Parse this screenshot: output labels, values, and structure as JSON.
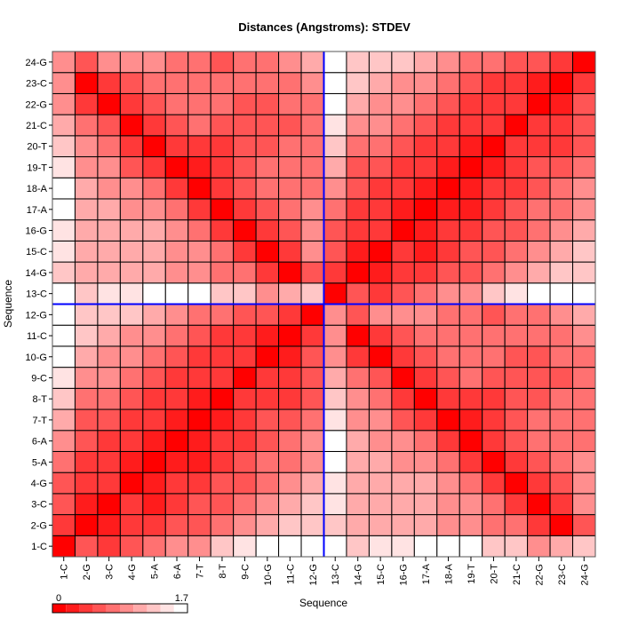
{
  "chart_data": {
    "type": "heatmap",
    "title": "Distances (Angstroms):  STDEV",
    "xlabel": "Sequence",
    "ylabel": "Sequence",
    "categories": [
      "1-C",
      "2-G",
      "3-C",
      "4-G",
      "5-A",
      "6-A",
      "7-T",
      "8-T",
      "9-C",
      "10-G",
      "11-C",
      "12-G",
      "13-C",
      "14-G",
      "15-C",
      "16-G",
      "17-A",
      "18-A",
      "19-T",
      "20-T",
      "21-C",
      "22-G",
      "23-C",
      "24-G"
    ],
    "legend": {
      "min_label": "0",
      "max_label": "1.7",
      "min": 0,
      "max": 1.7,
      "bins": 10
    },
    "colors": {
      "low": "#ff0000",
      "high": "#ffffff",
      "grid": "#000000",
      "highlight": "#0000ff"
    },
    "blockA": [
      [
        0.0,
        0.55,
        0.5,
        0.65,
        0.75,
        0.9,
        1.0,
        1.2,
        1.45,
        1.6,
        1.7,
        1.65
      ],
      [
        0.5,
        0.0,
        0.25,
        0.35,
        0.4,
        0.55,
        0.6,
        0.7,
        0.9,
        1.05,
        1.2,
        1.3
      ],
      [
        0.55,
        0.25,
        0.0,
        0.35,
        0.3,
        0.45,
        0.55,
        0.65,
        0.8,
        0.95,
        1.1,
        1.25
      ],
      [
        0.65,
        0.35,
        0.4,
        0.0,
        0.25,
        0.35,
        0.45,
        0.55,
        0.65,
        0.8,
        0.9,
        1.15
      ],
      [
        0.75,
        0.45,
        0.35,
        0.2,
        0.0,
        0.2,
        0.25,
        0.4,
        0.55,
        0.7,
        0.8,
        1.0
      ],
      [
        0.9,
        0.55,
        0.5,
        0.35,
        0.25,
        0.0,
        0.2,
        0.35,
        0.5,
        0.65,
        0.7,
        0.85
      ],
      [
        1.1,
        0.65,
        0.55,
        0.45,
        0.35,
        0.2,
        0.0,
        0.25,
        0.4,
        0.55,
        0.6,
        0.75
      ],
      [
        1.3,
        0.8,
        0.7,
        0.55,
        0.45,
        0.35,
        0.25,
        0.0,
        0.35,
        0.45,
        0.5,
        0.65
      ],
      [
        1.5,
        1.0,
        0.85,
        0.7,
        0.6,
        0.45,
        0.4,
        0.35,
        0.0,
        0.35,
        0.4,
        0.6
      ],
      [
        1.6,
        1.1,
        1.0,
        0.85,
        0.75,
        0.6,
        0.5,
        0.45,
        0.35,
        0.0,
        0.3,
        0.55
      ],
      [
        1.7,
        1.25,
        1.15,
        0.95,
        0.85,
        0.7,
        0.6,
        0.5,
        0.4,
        0.3,
        0.0,
        0.45
      ],
      [
        1.65,
        1.35,
        1.35,
        1.2,
        1.1,
        0.9,
        0.75,
        0.7,
        0.65,
        0.55,
        0.45,
        0.0
      ]
    ],
    "blockB": [
      [
        1.55,
        1.35,
        1.45,
        1.5,
        1.6,
        1.6,
        1.55,
        1.35,
        1.2,
        1.0,
        1.1,
        1.25
      ],
      [
        1.35,
        1.05,
        1.1,
        1.1,
        1.1,
        1.0,
        0.9,
        0.8,
        0.7,
        0.4,
        0.15,
        0.6
      ],
      [
        1.45,
        1.15,
        1.1,
        1.1,
        1.1,
        0.95,
        0.85,
        0.7,
        0.5,
        0.15,
        0.4,
        0.95
      ],
      [
        1.5,
        1.15,
        1.1,
        1.05,
        1.05,
        0.9,
        0.7,
        0.5,
        0.15,
        0.4,
        0.6,
        0.95
      ],
      [
        1.6,
        1.15,
        1.05,
        1.0,
        1.0,
        0.7,
        0.45,
        0.15,
        0.4,
        0.65,
        0.75,
        0.85
      ],
      [
        1.6,
        1.05,
        0.95,
        0.85,
        0.7,
        0.4,
        0.15,
        0.35,
        0.6,
        0.7,
        0.75,
        0.75
      ],
      [
        1.5,
        0.95,
        0.85,
        0.65,
        0.5,
        0.15,
        0.3,
        0.45,
        0.65,
        0.7,
        0.75,
        0.75
      ],
      [
        1.3,
        0.9,
        0.75,
        0.5,
        0.15,
        0.35,
        0.45,
        0.5,
        0.65,
        0.65,
        0.7,
        0.7
      ],
      [
        1.1,
        0.8,
        0.55,
        0.15,
        0.4,
        0.65,
        0.7,
        0.65,
        0.65,
        0.65,
        0.65,
        0.7
      ],
      [
        0.85,
        0.35,
        0.15,
        0.35,
        0.65,
        0.75,
        0.75,
        0.7,
        0.65,
        0.65,
        0.7,
        0.8
      ],
      [
        0.9,
        0.15,
        0.35,
        0.65,
        0.75,
        0.8,
        0.8,
        0.75,
        0.7,
        0.7,
        0.8,
        0.9
      ],
      [
        1.0,
        0.6,
        0.95,
        0.95,
        0.85,
        0.75,
        0.7,
        0.65,
        0.7,
        0.75,
        0.9,
        1.1
      ]
    ],
    "highlight_category": "13-C"
  }
}
